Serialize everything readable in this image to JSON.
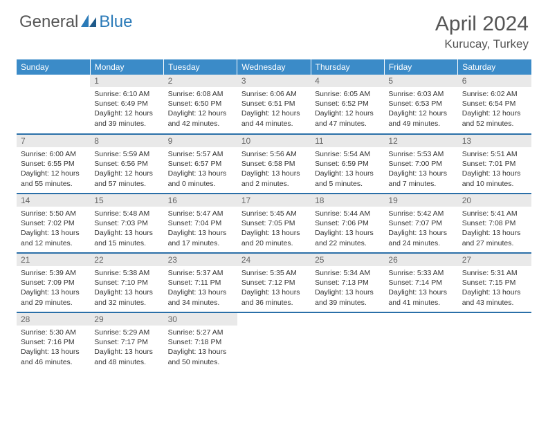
{
  "logo": {
    "general": "General",
    "blue": "Blue"
  },
  "title": "April 2024",
  "location": "Kurucay, Turkey",
  "colors": {
    "header_bg": "#3b8bc8",
    "header_text": "#ffffff",
    "daynum_bg": "#e9e9e9",
    "daynum_text": "#666666",
    "body_text": "#333333",
    "rule": "#2a6fa8",
    "logo_gray": "#555555",
    "logo_blue": "#2a7ab8"
  },
  "day_headers": [
    "Sunday",
    "Monday",
    "Tuesday",
    "Wednesday",
    "Thursday",
    "Friday",
    "Saturday"
  ],
  "weeks": [
    [
      {
        "blank": true
      },
      {
        "n": "1",
        "sr": "Sunrise: 6:10 AM",
        "ss": "Sunset: 6:49 PM",
        "d1": "Daylight: 12 hours",
        "d2": "and 39 minutes."
      },
      {
        "n": "2",
        "sr": "Sunrise: 6:08 AM",
        "ss": "Sunset: 6:50 PM",
        "d1": "Daylight: 12 hours",
        "d2": "and 42 minutes."
      },
      {
        "n": "3",
        "sr": "Sunrise: 6:06 AM",
        "ss": "Sunset: 6:51 PM",
        "d1": "Daylight: 12 hours",
        "d2": "and 44 minutes."
      },
      {
        "n": "4",
        "sr": "Sunrise: 6:05 AM",
        "ss": "Sunset: 6:52 PM",
        "d1": "Daylight: 12 hours",
        "d2": "and 47 minutes."
      },
      {
        "n": "5",
        "sr": "Sunrise: 6:03 AM",
        "ss": "Sunset: 6:53 PM",
        "d1": "Daylight: 12 hours",
        "d2": "and 49 minutes."
      },
      {
        "n": "6",
        "sr": "Sunrise: 6:02 AM",
        "ss": "Sunset: 6:54 PM",
        "d1": "Daylight: 12 hours",
        "d2": "and 52 minutes."
      }
    ],
    [
      {
        "n": "7",
        "sr": "Sunrise: 6:00 AM",
        "ss": "Sunset: 6:55 PM",
        "d1": "Daylight: 12 hours",
        "d2": "and 55 minutes."
      },
      {
        "n": "8",
        "sr": "Sunrise: 5:59 AM",
        "ss": "Sunset: 6:56 PM",
        "d1": "Daylight: 12 hours",
        "d2": "and 57 minutes."
      },
      {
        "n": "9",
        "sr": "Sunrise: 5:57 AM",
        "ss": "Sunset: 6:57 PM",
        "d1": "Daylight: 13 hours",
        "d2": "and 0 minutes."
      },
      {
        "n": "10",
        "sr": "Sunrise: 5:56 AM",
        "ss": "Sunset: 6:58 PM",
        "d1": "Daylight: 13 hours",
        "d2": "and 2 minutes."
      },
      {
        "n": "11",
        "sr": "Sunrise: 5:54 AM",
        "ss": "Sunset: 6:59 PM",
        "d1": "Daylight: 13 hours",
        "d2": "and 5 minutes."
      },
      {
        "n": "12",
        "sr": "Sunrise: 5:53 AM",
        "ss": "Sunset: 7:00 PM",
        "d1": "Daylight: 13 hours",
        "d2": "and 7 minutes."
      },
      {
        "n": "13",
        "sr": "Sunrise: 5:51 AM",
        "ss": "Sunset: 7:01 PM",
        "d1": "Daylight: 13 hours",
        "d2": "and 10 minutes."
      }
    ],
    [
      {
        "n": "14",
        "sr": "Sunrise: 5:50 AM",
        "ss": "Sunset: 7:02 PM",
        "d1": "Daylight: 13 hours",
        "d2": "and 12 minutes."
      },
      {
        "n": "15",
        "sr": "Sunrise: 5:48 AM",
        "ss": "Sunset: 7:03 PM",
        "d1": "Daylight: 13 hours",
        "d2": "and 15 minutes."
      },
      {
        "n": "16",
        "sr": "Sunrise: 5:47 AM",
        "ss": "Sunset: 7:04 PM",
        "d1": "Daylight: 13 hours",
        "d2": "and 17 minutes."
      },
      {
        "n": "17",
        "sr": "Sunrise: 5:45 AM",
        "ss": "Sunset: 7:05 PM",
        "d1": "Daylight: 13 hours",
        "d2": "and 20 minutes."
      },
      {
        "n": "18",
        "sr": "Sunrise: 5:44 AM",
        "ss": "Sunset: 7:06 PM",
        "d1": "Daylight: 13 hours",
        "d2": "and 22 minutes."
      },
      {
        "n": "19",
        "sr": "Sunrise: 5:42 AM",
        "ss": "Sunset: 7:07 PM",
        "d1": "Daylight: 13 hours",
        "d2": "and 24 minutes."
      },
      {
        "n": "20",
        "sr": "Sunrise: 5:41 AM",
        "ss": "Sunset: 7:08 PM",
        "d1": "Daylight: 13 hours",
        "d2": "and 27 minutes."
      }
    ],
    [
      {
        "n": "21",
        "sr": "Sunrise: 5:39 AM",
        "ss": "Sunset: 7:09 PM",
        "d1": "Daylight: 13 hours",
        "d2": "and 29 minutes."
      },
      {
        "n": "22",
        "sr": "Sunrise: 5:38 AM",
        "ss": "Sunset: 7:10 PM",
        "d1": "Daylight: 13 hours",
        "d2": "and 32 minutes."
      },
      {
        "n": "23",
        "sr": "Sunrise: 5:37 AM",
        "ss": "Sunset: 7:11 PM",
        "d1": "Daylight: 13 hours",
        "d2": "and 34 minutes."
      },
      {
        "n": "24",
        "sr": "Sunrise: 5:35 AM",
        "ss": "Sunset: 7:12 PM",
        "d1": "Daylight: 13 hours",
        "d2": "and 36 minutes."
      },
      {
        "n": "25",
        "sr": "Sunrise: 5:34 AM",
        "ss": "Sunset: 7:13 PM",
        "d1": "Daylight: 13 hours",
        "d2": "and 39 minutes."
      },
      {
        "n": "26",
        "sr": "Sunrise: 5:33 AM",
        "ss": "Sunset: 7:14 PM",
        "d1": "Daylight: 13 hours",
        "d2": "and 41 minutes."
      },
      {
        "n": "27",
        "sr": "Sunrise: 5:31 AM",
        "ss": "Sunset: 7:15 PM",
        "d1": "Daylight: 13 hours",
        "d2": "and 43 minutes."
      }
    ],
    [
      {
        "n": "28",
        "sr": "Sunrise: 5:30 AM",
        "ss": "Sunset: 7:16 PM",
        "d1": "Daylight: 13 hours",
        "d2": "and 46 minutes."
      },
      {
        "n": "29",
        "sr": "Sunrise: 5:29 AM",
        "ss": "Sunset: 7:17 PM",
        "d1": "Daylight: 13 hours",
        "d2": "and 48 minutes."
      },
      {
        "n": "30",
        "sr": "Sunrise: 5:27 AM",
        "ss": "Sunset: 7:18 PM",
        "d1": "Daylight: 13 hours",
        "d2": "and 50 minutes."
      },
      {
        "blank": true
      },
      {
        "blank": true
      },
      {
        "blank": true
      },
      {
        "blank": true
      }
    ]
  ]
}
